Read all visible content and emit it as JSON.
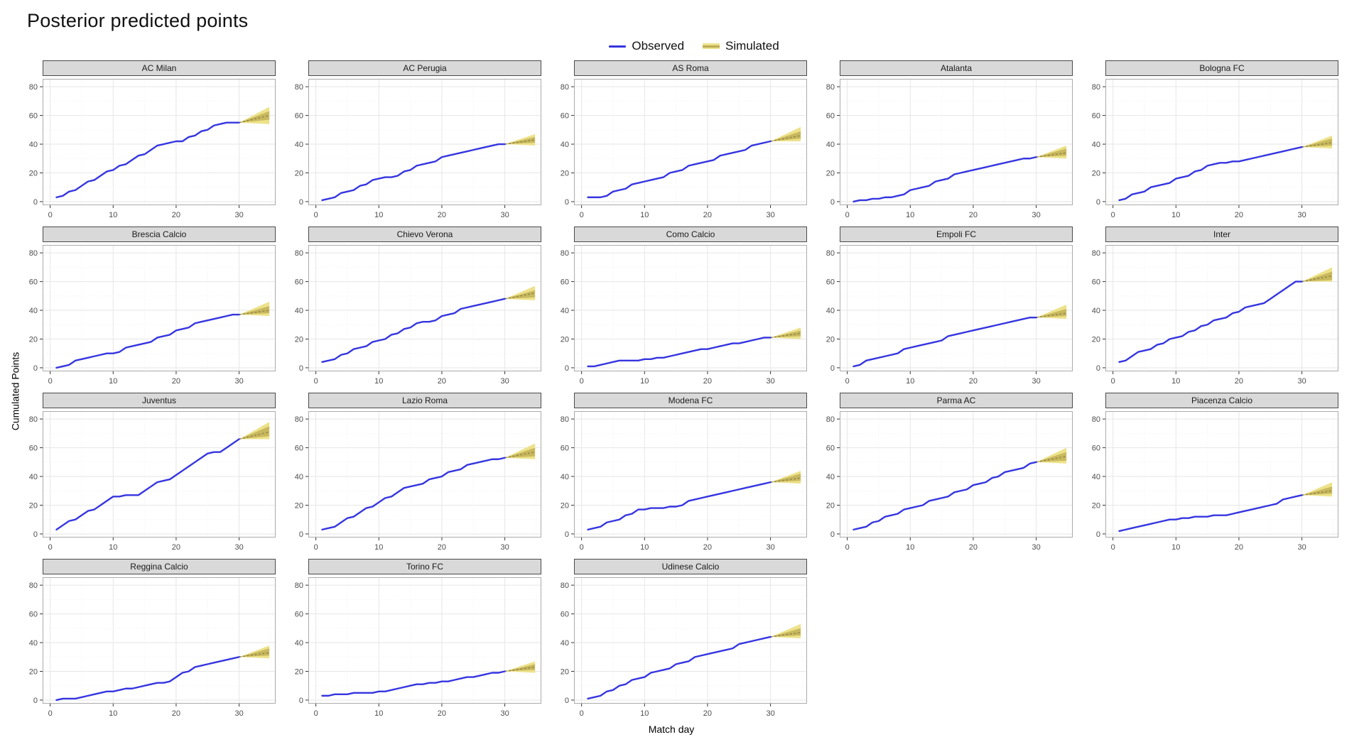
{
  "header": {
    "title": "Posterior predicted points"
  },
  "legend": {
    "observed_label": "Observed",
    "simulated_label": "Simulated"
  },
  "colors": {
    "observed": "#3535E0",
    "simulated_key": "#BDAD55",
    "fan_outer": "#EDE28A",
    "fan_inner": "#C9B95E",
    "fan_median": "#97894C",
    "strip_bg": "#D9D9D9",
    "strip_border": "#4A4A4A",
    "panel_border": "#ABABAB",
    "grid_major": "#E6E6E6",
    "grid_minor": "#F2F2F2",
    "tick_label": "#4D4D4D",
    "tick_mark": "#333333"
  },
  "chart_data": {
    "type": "line",
    "title": "Posterior predicted points",
    "xlabel": "Match day",
    "ylabel": "Cumulated Points",
    "legend_entries": [
      "Observed",
      "Simulated"
    ],
    "legend_position": "top-center",
    "grid": "major-and-minor",
    "x_ticks": [
      0,
      10,
      20,
      30
    ],
    "x_minor": [
      5,
      15,
      25,
      35
    ],
    "y_ticks": [
      0,
      20,
      40,
      60,
      80
    ],
    "y_minor": [
      10,
      30,
      50,
      70
    ],
    "xlim": [
      -1.2,
      35.8
    ],
    "ylim": [
      -2.5,
      85.5
    ],
    "observed_days_start": 1,
    "sim_start_day": 30,
    "sim_end_day": 34.8,
    "facets": [
      {
        "name": "AC Milan",
        "observed": [
          3,
          4,
          7,
          8,
          11,
          14,
          15,
          18,
          21,
          22,
          25,
          26,
          29,
          32,
          33,
          36,
          39,
          40,
          41,
          42,
          42,
          45,
          46,
          49,
          50,
          53,
          54,
          55,
          55,
          55
        ],
        "fan": {
          "outer": [
            54,
            66
          ],
          "inner": [
            57,
            63
          ],
          "median": 60
        }
      },
      {
        "name": "AC Perugia",
        "observed": [
          1,
          2,
          3,
          6,
          7,
          8,
          11,
          12,
          15,
          16,
          17,
          17,
          18,
          21,
          22,
          25,
          26,
          27,
          28,
          31,
          32,
          33,
          34,
          35,
          36,
          37,
          38,
          39,
          40,
          40
        ],
        "fan": {
          "outer": [
            39,
            47
          ],
          "inner": [
            41,
            45
          ],
          "median": 43
        }
      },
      {
        "name": "AS Roma",
        "observed": [
          3,
          3,
          3,
          4,
          7,
          8,
          9,
          12,
          13,
          14,
          15,
          16,
          17,
          20,
          21,
          22,
          25,
          26,
          27,
          28,
          29,
          32,
          33,
          34,
          35,
          36,
          39,
          40,
          41,
          42
        ],
        "fan": {
          "outer": [
            42,
            52
          ],
          "inner": [
            44,
            49
          ],
          "median": 46
        }
      },
      {
        "name": "Atalanta",
        "observed": [
          0,
          1,
          1,
          2,
          2,
          3,
          3,
          4,
          5,
          8,
          9,
          10,
          11,
          14,
          15,
          16,
          19,
          20,
          21,
          22,
          23,
          24,
          25,
          26,
          27,
          28,
          29,
          30,
          30,
          31
        ],
        "fan": {
          "outer": [
            30,
            39
          ],
          "inner": [
            32,
            37
          ],
          "median": 34
        }
      },
      {
        "name": "Bologna FC",
        "observed": [
          1,
          2,
          5,
          6,
          7,
          10,
          11,
          12,
          13,
          16,
          17,
          18,
          21,
          22,
          25,
          26,
          27,
          27,
          28,
          28,
          29,
          30,
          31,
          32,
          33,
          34,
          35,
          36,
          37,
          38
        ],
        "fan": {
          "outer": [
            37,
            46
          ],
          "inner": [
            39,
            44
          ],
          "median": 41
        }
      },
      {
        "name": "Brescia Calcio",
        "observed": [
          0,
          1,
          2,
          5,
          6,
          7,
          8,
          9,
          10,
          10,
          11,
          14,
          15,
          16,
          17,
          18,
          21,
          22,
          23,
          26,
          27,
          28,
          31,
          32,
          33,
          34,
          35,
          36,
          37,
          37
        ],
        "fan": {
          "outer": [
            36,
            46
          ],
          "inner": [
            38,
            43
          ],
          "median": 40
        }
      },
      {
        "name": "Chievo Verona",
        "observed": [
          4,
          5,
          6,
          9,
          10,
          13,
          14,
          15,
          18,
          19,
          20,
          23,
          24,
          27,
          28,
          31,
          32,
          32,
          33,
          36,
          37,
          38,
          41,
          42,
          43,
          44,
          45,
          46,
          47,
          48
        ],
        "fan": {
          "outer": [
            47,
            57
          ],
          "inner": [
            49,
            54
          ],
          "median": 52
        }
      },
      {
        "name": "Como Calcio",
        "observed": [
          1,
          1,
          2,
          3,
          4,
          5,
          5,
          5,
          5,
          6,
          6,
          7,
          7,
          8,
          9,
          10,
          11,
          12,
          13,
          13,
          14,
          15,
          16,
          17,
          17,
          18,
          19,
          20,
          21,
          21
        ],
        "fan": {
          "outer": [
            20,
            28
          ],
          "inner": [
            22,
            26
          ],
          "median": 24
        }
      },
      {
        "name": "Empoli FC",
        "observed": [
          1,
          2,
          5,
          6,
          7,
          8,
          9,
          10,
          13,
          14,
          15,
          16,
          17,
          18,
          19,
          22,
          23,
          24,
          25,
          26,
          27,
          28,
          29,
          30,
          31,
          32,
          33,
          34,
          35,
          35
        ],
        "fan": {
          "outer": [
            34,
            44
          ],
          "inner": [
            36,
            41
          ],
          "median": 38
        }
      },
      {
        "name": "Inter",
        "observed": [
          4,
          5,
          8,
          11,
          12,
          13,
          16,
          17,
          20,
          21,
          22,
          25,
          26,
          29,
          30,
          33,
          34,
          35,
          38,
          39,
          42,
          43,
          44,
          45,
          48,
          51,
          54,
          57,
          60,
          60
        ],
        "fan": {
          "outer": [
            60,
            70
          ],
          "inner": [
            61,
            67
          ],
          "median": 64
        }
      },
      {
        "name": "Juventus",
        "observed": [
          3,
          6,
          9,
          10,
          13,
          16,
          17,
          20,
          23,
          26,
          26,
          27,
          27,
          27,
          30,
          33,
          36,
          37,
          38,
          41,
          44,
          47,
          50,
          53,
          56,
          57,
          57,
          60,
          63,
          66
        ],
        "fan": {
          "outer": [
            66,
            78
          ],
          "inner": [
            68,
            75
          ],
          "median": 71
        }
      },
      {
        "name": "Lazio Roma",
        "observed": [
          3,
          4,
          5,
          8,
          11,
          12,
          15,
          18,
          19,
          22,
          25,
          26,
          29,
          32,
          33,
          34,
          35,
          38,
          39,
          40,
          43,
          44,
          45,
          48,
          49,
          50,
          51,
          52,
          52,
          53
        ],
        "fan": {
          "outer": [
            52,
            63
          ],
          "inner": [
            54,
            60
          ],
          "median": 57
        }
      },
      {
        "name": "Modena FC",
        "observed": [
          3,
          4,
          5,
          8,
          9,
          10,
          13,
          14,
          17,
          17,
          18,
          18,
          18,
          19,
          19,
          20,
          23,
          24,
          25,
          26,
          27,
          28,
          29,
          30,
          31,
          32,
          33,
          34,
          35,
          36
        ],
        "fan": {
          "outer": [
            35,
            44
          ],
          "inner": [
            37,
            42
          ],
          "median": 39
        }
      },
      {
        "name": "Parma AC",
        "observed": [
          3,
          4,
          5,
          8,
          9,
          12,
          13,
          14,
          17,
          18,
          19,
          20,
          23,
          24,
          25,
          26,
          29,
          30,
          31,
          34,
          35,
          36,
          39,
          40,
          43,
          44,
          45,
          46,
          49,
          50
        ],
        "fan": {
          "outer": [
            49,
            60
          ],
          "inner": [
            51,
            57
          ],
          "median": 54
        }
      },
      {
        "name": "Piacenza Calcio",
        "observed": [
          2,
          3,
          4,
          5,
          6,
          7,
          8,
          9,
          10,
          10,
          11,
          11,
          12,
          12,
          12,
          13,
          13,
          13,
          14,
          15,
          16,
          17,
          18,
          19,
          20,
          21,
          24,
          25,
          26,
          27
        ],
        "fan": {
          "outer": [
            26,
            36
          ],
          "inner": [
            28,
            33
          ],
          "median": 30
        }
      },
      {
        "name": "Reggina Calcio",
        "observed": [
          0,
          1,
          1,
          1,
          2,
          3,
          4,
          5,
          6,
          6,
          7,
          8,
          8,
          9,
          10,
          11,
          12,
          12,
          13,
          16,
          19,
          20,
          23,
          24,
          25,
          26,
          27,
          28,
          29,
          30
        ],
        "fan": {
          "outer": [
            29,
            38
          ],
          "inner": [
            31,
            36
          ],
          "median": 33
        }
      },
      {
        "name": "Torino FC",
        "observed": [
          3,
          3,
          4,
          4,
          4,
          5,
          5,
          5,
          5,
          6,
          6,
          7,
          8,
          9,
          10,
          11,
          11,
          12,
          12,
          13,
          13,
          14,
          15,
          16,
          16,
          17,
          18,
          19,
          19,
          20
        ],
        "fan": {
          "outer": [
            19,
            27
          ],
          "inner": [
            21,
            25
          ],
          "median": 23
        }
      },
      {
        "name": "Udinese Calcio",
        "observed": [
          1,
          2,
          3,
          6,
          7,
          10,
          11,
          14,
          15,
          16,
          19,
          20,
          21,
          22,
          25,
          26,
          27,
          30,
          31,
          32,
          33,
          34,
          35,
          36,
          39,
          40,
          41,
          42,
          43,
          44
        ],
        "fan": {
          "outer": [
            43,
            53
          ],
          "inner": [
            45,
            50
          ],
          "median": 47
        }
      }
    ]
  }
}
